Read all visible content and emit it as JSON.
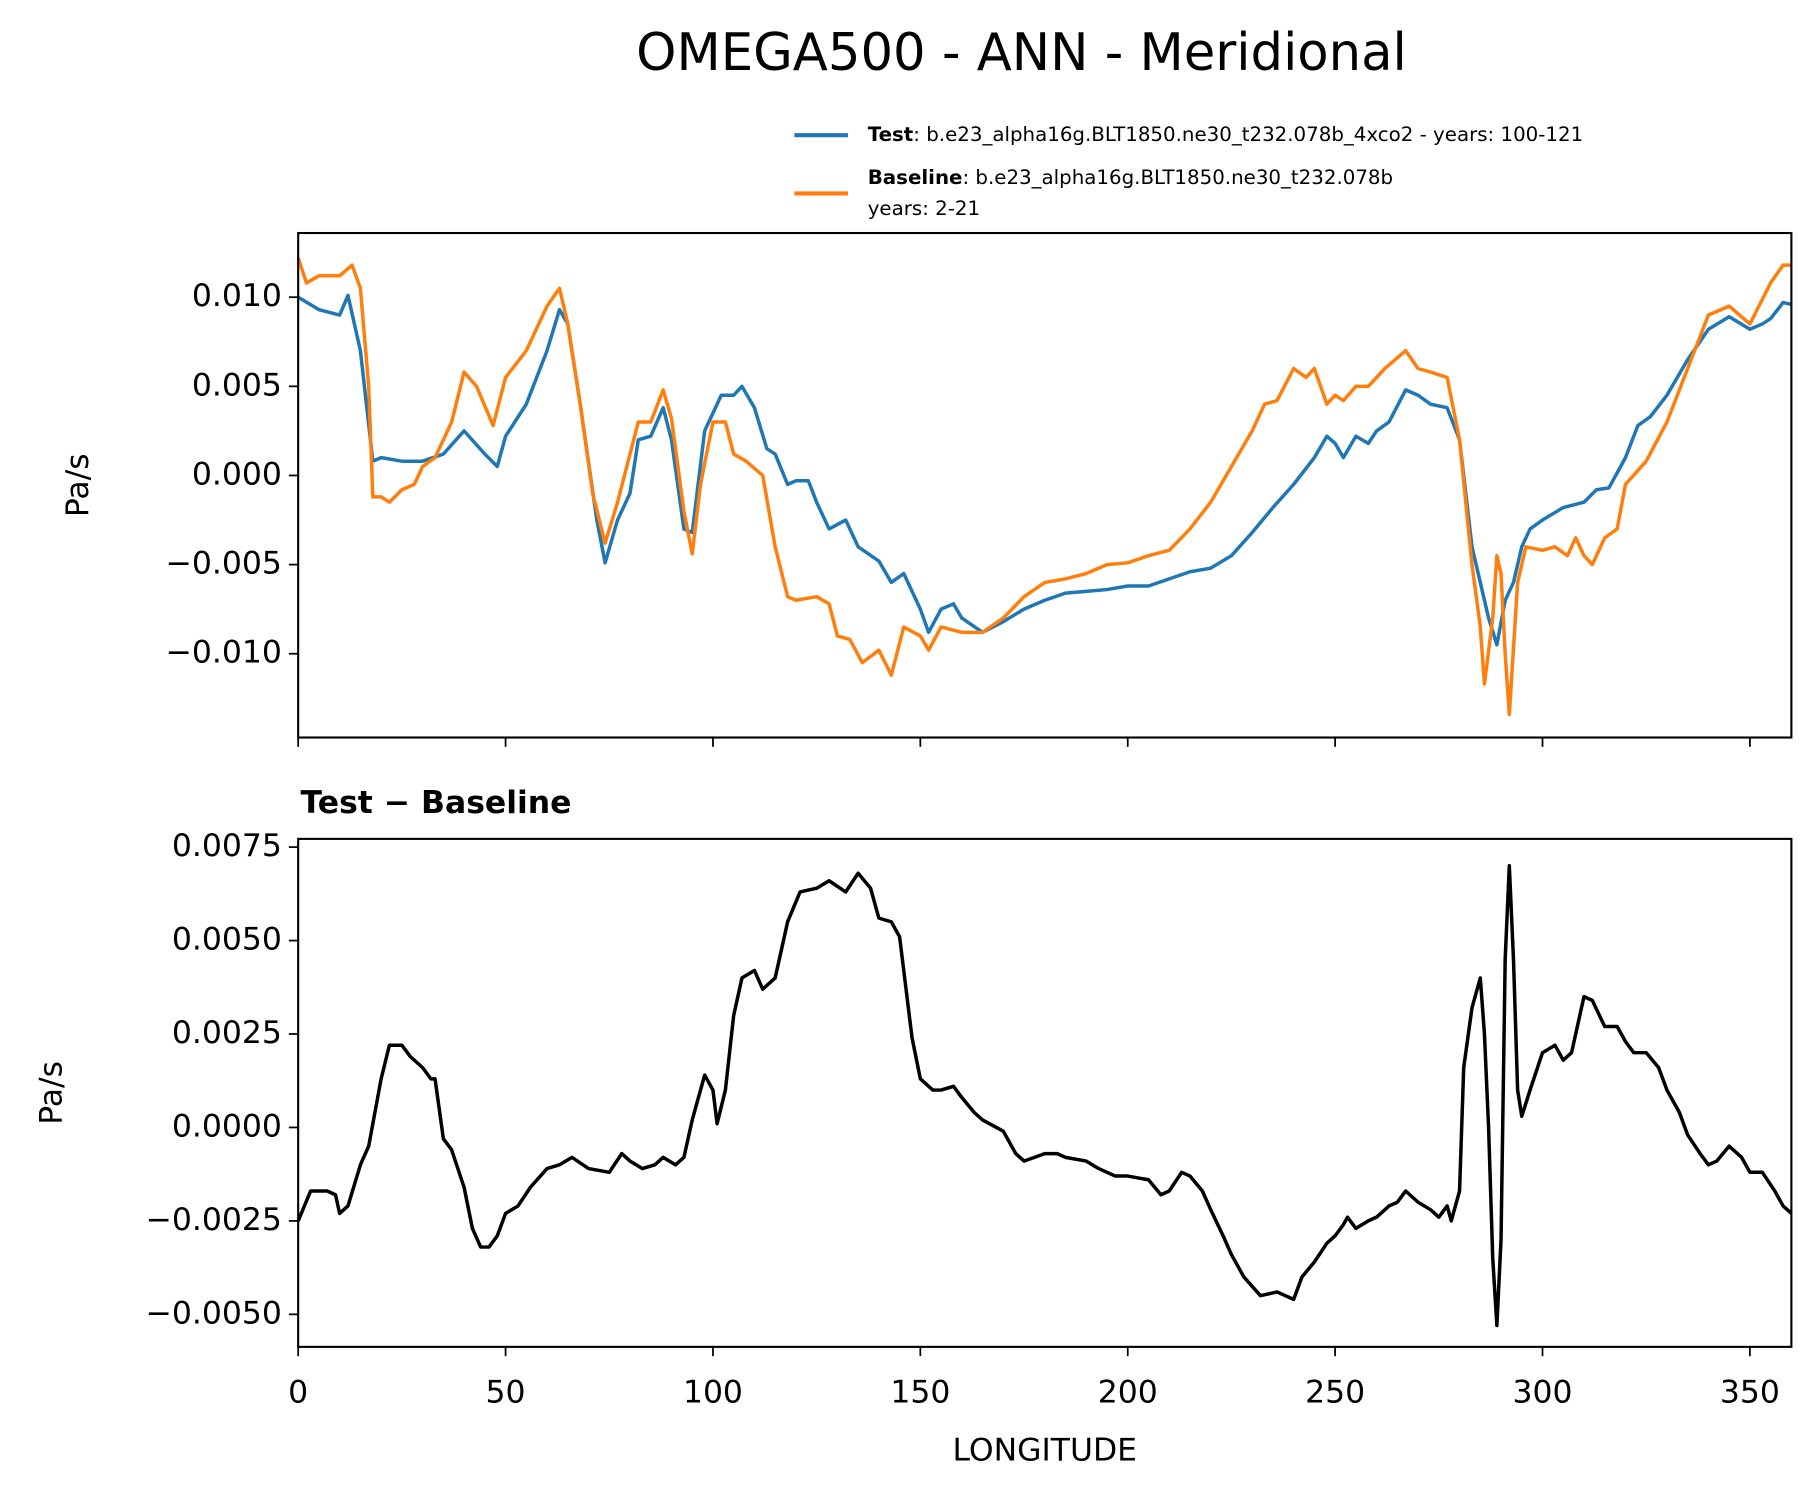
{
  "chart_data": [
    {
      "type": "line",
      "title": "OMEGA500 - ANN - Meridional",
      "ylabel": "Pa/s",
      "xlim": [
        0,
        360
      ],
      "xticks": [
        0,
        50,
        100,
        150,
        200,
        250,
        300,
        350
      ],
      "show_xtick_labels": false,
      "ylim": [
        -0.0147,
        0.0136
      ],
      "yticks": [
        {
          "value": -0.01,
          "label": "−0.010"
        },
        {
          "value": -0.005,
          "label": "−0.005"
        },
        {
          "value": 0,
          "label": "0.000"
        },
        {
          "value": 0.005,
          "label": "0.005"
        },
        {
          "value": 0.01,
          "label": "0.010"
        }
      ],
      "series": [
        {
          "name": "Test",
          "description": [
            ": b.e23_alpha16g.BLT1850.ne30_t232.078b_4xco2 - years: 100-121"
          ],
          "color": "#1f77b4",
          "x": [
            0,
            5,
            10,
            12,
            15,
            18,
            20,
            25,
            30,
            35,
            40,
            45,
            48,
            50,
            55,
            60,
            63,
            65,
            68,
            72,
            74,
            77,
            80,
            82,
            85,
            88,
            90,
            93,
            95,
            98,
            102,
            105,
            107,
            110,
            113,
            115,
            118,
            120,
            123,
            125,
            128,
            132,
            135,
            140,
            143,
            146,
            150,
            152,
            155,
            158,
            160,
            165,
            170,
            175,
            180,
            185,
            190,
            195,
            200,
            205,
            210,
            215,
            220,
            225,
            230,
            235,
            240,
            245,
            248,
            250,
            252,
            255,
            258,
            260,
            263,
            267,
            270,
            273,
            277,
            280,
            283,
            285,
            287,
            289,
            291,
            293,
            295,
            297,
            300,
            305,
            310,
            313,
            316,
            320,
            323,
            326,
            330,
            335,
            340,
            345,
            350,
            353,
            355,
            358,
            360
          ],
          "values": [
            0.01,
            0.0093,
            0.009,
            0.0101,
            0.007,
            0.0008,
            0.001,
            0.0008,
            0.0008,
            0.0012,
            0.0025,
            0.0012,
            0.0005,
            0.0022,
            0.004,
            0.007,
            0.0093,
            0.0085,
            0.004,
            -0.0025,
            -0.0049,
            -0.0025,
            -0.001,
            0.002,
            0.0022,
            0.0038,
            0.002,
            -0.003,
            -0.0032,
            0.0025,
            0.0045,
            0.0045,
            0.005,
            0.0038,
            0.0015,
            0.0012,
            -0.0005,
            -0.0003,
            -0.0003,
            -0.0015,
            -0.003,
            -0.0025,
            -0.004,
            -0.0048,
            -0.006,
            -0.0055,
            -0.0075,
            -0.0088,
            -0.0075,
            -0.0072,
            -0.008,
            -0.0088,
            -0.0082,
            -0.0075,
            -0.007,
            -0.0066,
            -0.0065,
            -0.0064,
            -0.0062,
            -0.0062,
            -0.0058,
            -0.0054,
            -0.0052,
            -0.0045,
            -0.0032,
            -0.0018,
            -0.0005,
            0.001,
            0.0022,
            0.0018,
            0.001,
            0.0022,
            0.0018,
            0.0025,
            0.003,
            0.0048,
            0.0045,
            0.004,
            0.0038,
            0.002,
            -0.004,
            -0.006,
            -0.008,
            -0.0095,
            -0.007,
            -0.006,
            -0.004,
            -0.003,
            -0.0025,
            -0.0018,
            -0.0015,
            -0.0008,
            -0.0007,
            0.001,
            0.0028,
            0.0033,
            0.0045,
            0.0065,
            0.0082,
            0.0089,
            0.0082,
            0.0085,
            0.0088,
            0.0097,
            0.0096
          ]
        },
        {
          "name": "Baseline",
          "description": [
            ": b.e23_alpha16g.BLT1850.ne30_t232.078b",
            "years: 2-21"
          ],
          "color": "#ff7f0e",
          "x": [
            0,
            2,
            5,
            10,
            13,
            15,
            17,
            18,
            20,
            22,
            25,
            28,
            30,
            33,
            37,
            40,
            43,
            47,
            50,
            55,
            60,
            63,
            65,
            68,
            71,
            74,
            77,
            80,
            82,
            85,
            88,
            90,
            93,
            95,
            97,
            100,
            103,
            105,
            108,
            112,
            115,
            118,
            120,
            125,
            128,
            130,
            133,
            136,
            140,
            143,
            146,
            150,
            152,
            155,
            160,
            165,
            170,
            175,
            180,
            185,
            190,
            195,
            200,
            205,
            210,
            215,
            220,
            225,
            230,
            233,
            236,
            240,
            243,
            245,
            248,
            250,
            252,
            255,
            258,
            262,
            267,
            270,
            273,
            277,
            280,
            283,
            285,
            286,
            288,
            289,
            290,
            291,
            292,
            294,
            296,
            300,
            303,
            306,
            308,
            310,
            312,
            315,
            318,
            320,
            325,
            330,
            335,
            340,
            345,
            350,
            355,
            358,
            360
          ],
          "values": [
            0.0122,
            0.0108,
            0.0112,
            0.0112,
            0.0118,
            0.0105,
            0.005,
            -0.0012,
            -0.0012,
            -0.0015,
            -0.0008,
            -0.0005,
            0.0005,
            0.001,
            0.003,
            0.0058,
            0.005,
            0.0028,
            0.0055,
            0.007,
            0.0095,
            0.0105,
            0.0085,
            0.004,
            -0.001,
            -0.0038,
            -0.0015,
            0.0012,
            0.003,
            0.003,
            0.0048,
            0.0032,
            -0.002,
            -0.0044,
            -0.0005,
            0.003,
            0.003,
            0.0012,
            0.0008,
            0.0,
            -0.004,
            -0.0068,
            -0.007,
            -0.0068,
            -0.0072,
            -0.009,
            -0.0092,
            -0.0105,
            -0.0098,
            -0.0112,
            -0.0085,
            -0.009,
            -0.0098,
            -0.0085,
            -0.0088,
            -0.0088,
            -0.008,
            -0.0068,
            -0.006,
            -0.0058,
            -0.0055,
            -0.005,
            -0.0049,
            -0.0045,
            -0.0042,
            -0.003,
            -0.0015,
            0.0005,
            0.0025,
            0.004,
            0.0042,
            0.006,
            0.0055,
            0.006,
            0.004,
            0.0045,
            0.0042,
            0.005,
            0.005,
            0.006,
            0.007,
            0.006,
            0.0058,
            0.0055,
            0.002,
            -0.005,
            -0.0085,
            -0.0117,
            -0.008,
            -0.0045,
            -0.0055,
            -0.01,
            -0.0134,
            -0.006,
            -0.004,
            -0.0042,
            -0.004,
            -0.0045,
            -0.0035,
            -0.0045,
            -0.005,
            -0.0035,
            -0.003,
            -0.0005,
            0.0008,
            0.003,
            0.006,
            0.009,
            0.0095,
            0.0085,
            0.0108,
            0.0118,
            0.0118
          ]
        }
      ]
    },
    {
      "type": "line",
      "title": "Test − Baseline",
      "ylabel": "Pa/s",
      "xlabel": "LONGITUDE",
      "xlim": [
        0,
        360
      ],
      "xticks": [
        0,
        50,
        100,
        150,
        200,
        250,
        300,
        350
      ],
      "show_xtick_labels": true,
      "ylim": [
        -0.00587,
        0.00772
      ],
      "yticks": [
        {
          "value": -0.005,
          "label": "−0.0050"
        },
        {
          "value": -0.0025,
          "label": "−0.0025"
        },
        {
          "value": 0,
          "label": "0.0000"
        },
        {
          "value": 0.0025,
          "label": "0.0025"
        },
        {
          "value": 0.005,
          "label": "0.0050"
        },
        0.0075
      ],
      "series": [
        {
          "color": "#000000",
          "x": [
            0,
            3,
            7,
            9,
            10,
            12,
            15,
            17,
            20,
            22,
            25,
            27,
            30,
            32,
            33,
            35,
            37,
            40,
            42,
            44,
            46,
            48,
            50,
            53,
            56,
            60,
            63,
            66,
            70,
            75,
            78,
            80,
            83,
            86,
            88,
            91,
            93,
            95,
            98,
            100,
            101,
            103,
            105,
            107,
            110,
            112,
            115,
            118,
            121,
            125,
            128,
            132,
            135,
            138,
            140,
            143,
            145,
            148,
            150,
            153,
            155,
            158,
            160,
            163,
            165,
            170,
            173,
            175,
            180,
            183,
            185,
            190,
            193,
            197,
            200,
            205,
            208,
            210,
            213,
            215,
            218,
            220,
            223,
            225,
            228,
            232,
            236,
            238,
            240,
            242,
            245,
            248,
            250,
            252,
            253,
            255,
            258,
            260,
            263,
            265,
            267,
            270,
            273,
            275,
            277,
            278,
            280,
            281,
            283,
            285,
            286,
            287,
            288,
            289,
            290,
            291,
            292,
            293,
            294,
            295,
            297,
            300,
            303,
            305,
            307,
            310,
            312,
            315,
            318,
            320,
            322,
            325,
            328,
            330,
            333,
            335,
            338,
            340,
            342,
            345,
            348,
            350,
            353,
            356,
            358,
            360
          ],
          "values": [
            -0.0025,
            -0.0017,
            -0.0017,
            -0.0018,
            -0.0023,
            -0.0021,
            -0.001,
            -0.0005,
            0.0013,
            0.0022,
            0.0022,
            0.0019,
            0.0016,
            0.0013,
            0.0013,
            -0.0003,
            -0.0006,
            -0.0016,
            -0.0027,
            -0.0032,
            -0.0032,
            -0.0029,
            -0.0023,
            -0.0021,
            -0.0016,
            -0.0011,
            -0.001,
            -0.0008,
            -0.0011,
            -0.0012,
            -0.0007,
            -0.0009,
            -0.0011,
            -0.001,
            -0.0008,
            -0.001,
            -0.0008,
            0.0002,
            0.0014,
            0.001,
            0.0001,
            0.001,
            0.003,
            0.004,
            0.0042,
            0.0037,
            0.004,
            0.0055,
            0.0063,
            0.0064,
            0.0066,
            0.0063,
            0.0068,
            0.0064,
            0.0056,
            0.0055,
            0.0051,
            0.0024,
            0.0013,
            0.001,
            0.001,
            0.0011,
            0.0008,
            0.0004,
            0.0002,
            -0.0001,
            -0.0007,
            -0.0009,
            -0.0007,
            -0.0007,
            -0.0008,
            -0.0009,
            -0.0011,
            -0.0013,
            -0.0013,
            -0.0014,
            -0.0018,
            -0.0017,
            -0.0012,
            -0.0013,
            -0.0017,
            -0.0022,
            -0.0029,
            -0.0034,
            -0.004,
            -0.0045,
            -0.0044,
            -0.0045,
            -0.0046,
            -0.004,
            -0.0036,
            -0.0031,
            -0.0029,
            -0.0026,
            -0.0024,
            -0.0027,
            -0.0025,
            -0.0024,
            -0.0021,
            -0.002,
            -0.0017,
            -0.002,
            -0.0022,
            -0.0024,
            -0.0021,
            -0.0025,
            -0.0017,
            0.0016,
            0.0032,
            0.004,
            0.0025,
            0.0,
            -0.0035,
            -0.0053,
            -0.003,
            0.0045,
            0.007,
            0.0045,
            0.001,
            0.0003,
            0.001,
            0.002,
            0.0022,
            0.0018,
            0.002,
            0.0035,
            0.0034,
            0.0027,
            0.0027,
            0.0023,
            0.002,
            0.002,
            0.0016,
            0.001,
            0.0004,
            -0.0002,
            -0.0007,
            -0.001,
            -0.0009,
            -0.0005,
            -0.0008,
            -0.0012,
            -0.0012,
            -0.0017,
            -0.0021,
            -0.0023
          ]
        }
      ]
    }
  ]
}
